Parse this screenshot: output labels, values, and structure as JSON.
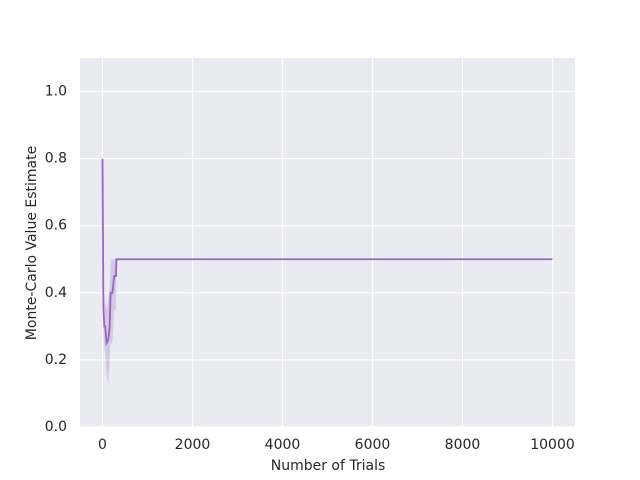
{
  "chart_data": {
    "type": "line",
    "xlabel": "Number of Trials",
    "ylabel": "Monte-Carlo Value Estimate",
    "x": [
      0,
      20,
      40,
      60,
      90,
      130,
      160,
      180,
      220,
      260,
      300,
      310,
      10000
    ],
    "series": [
      {
        "color": "#9467bd",
        "values": [
          0.8,
          0.35,
          0.3,
          0.3,
          0.25,
          0.26,
          0.3,
          0.4,
          0.4,
          0.45,
          0.45,
          0.5,
          0.5
        ],
        "lower": [
          0.8,
          0.28,
          0.24,
          0.22,
          0.15,
          0.13,
          0.2,
          0.25,
          0.25,
          0.35,
          0.35,
          0.5,
          0.5
        ],
        "upper": [
          0.8,
          0.43,
          0.38,
          0.37,
          0.35,
          0.38,
          0.42,
          0.5,
          0.5,
          0.5,
          0.5,
          0.5,
          0.5
        ]
      }
    ],
    "xlim": [
      -500,
      10500
    ],
    "ylim": [
      0,
      1.1
    ],
    "xticks": [
      0,
      2000,
      4000,
      6000,
      8000,
      10000
    ],
    "yticks": [
      {
        "value": 0,
        "label": "0.0"
      },
      0.2,
      0.4,
      0.6,
      0.8,
      {
        "value": 1,
        "label": "1.0"
      }
    ],
    "grid": true
  }
}
